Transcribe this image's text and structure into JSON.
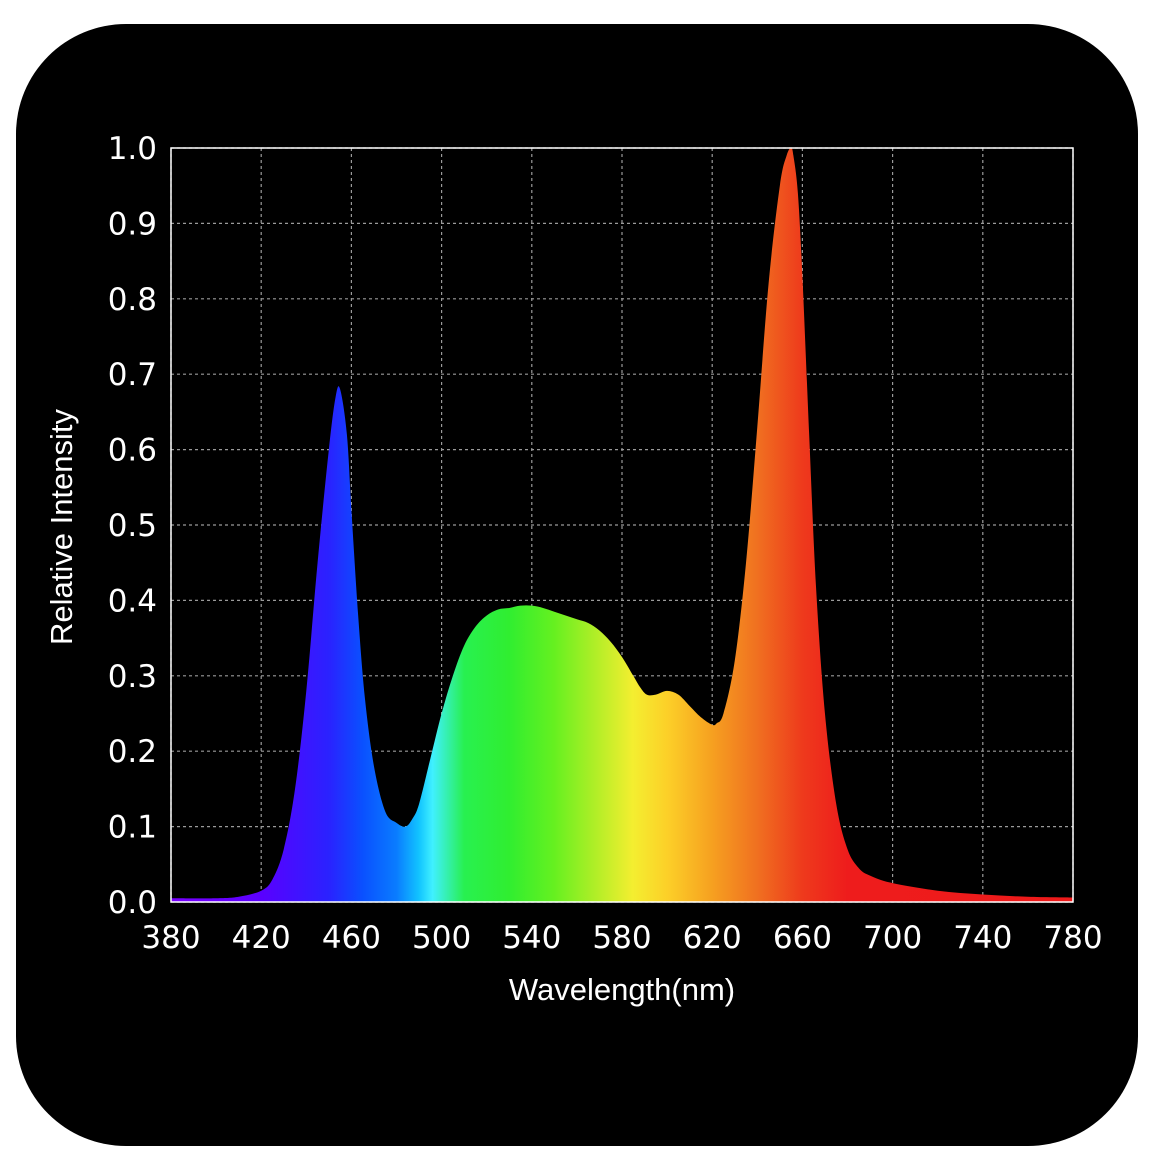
{
  "chart_data": {
    "type": "area",
    "title": "",
    "xlabel": "Wavelength(nm)",
    "ylabel": "Relative Intensity",
    "xlim": [
      380,
      780
    ],
    "ylim": [
      0,
      1.0
    ],
    "xticks": [
      380,
      420,
      460,
      500,
      540,
      580,
      620,
      660,
      700,
      740,
      780
    ],
    "yticks": [
      0.0,
      0.1,
      0.2,
      0.3,
      0.4,
      0.5,
      0.6,
      0.7,
      0.8,
      0.9,
      1.0
    ],
    "grid": true,
    "background": "#000000",
    "series": [
      {
        "fill": "visible-spectrum-gradient",
        "x": [
          380,
          400,
          410,
          420,
          425,
          430,
          435,
          440,
          445,
          450,
          453,
          455,
          458,
          460,
          463,
          466,
          470,
          475,
          480,
          484,
          487,
          490,
          495,
          500,
          505,
          510,
          515,
          520,
          525,
          530,
          535,
          540,
          545,
          550,
          555,
          560,
          565,
          570,
          575,
          580,
          585,
          588,
          591,
          595,
          600,
          605,
          610,
          615,
          620,
          622,
          625,
          630,
          635,
          640,
          645,
          650,
          653,
          655,
          656,
          658,
          660,
          663,
          666,
          670,
          675,
          680,
          685,
          690,
          700,
          720,
          740,
          760,
          780
        ],
        "y": [
          0.005,
          0.005,
          0.007,
          0.015,
          0.03,
          0.07,
          0.15,
          0.28,
          0.45,
          0.6,
          0.67,
          0.68,
          0.62,
          0.52,
          0.38,
          0.27,
          0.18,
          0.12,
          0.105,
          0.1,
          0.11,
          0.13,
          0.19,
          0.25,
          0.3,
          0.34,
          0.365,
          0.38,
          0.388,
          0.39,
          0.393,
          0.393,
          0.39,
          0.385,
          0.38,
          0.375,
          0.37,
          0.36,
          0.345,
          0.325,
          0.3,
          0.285,
          0.275,
          0.275,
          0.28,
          0.275,
          0.26,
          0.245,
          0.235,
          0.237,
          0.25,
          0.32,
          0.45,
          0.63,
          0.82,
          0.95,
          0.99,
          1.0,
          0.99,
          0.94,
          0.83,
          0.62,
          0.42,
          0.25,
          0.13,
          0.07,
          0.045,
          0.035,
          0.025,
          0.015,
          0.01,
          0.007,
          0.006
        ]
      }
    ]
  }
}
